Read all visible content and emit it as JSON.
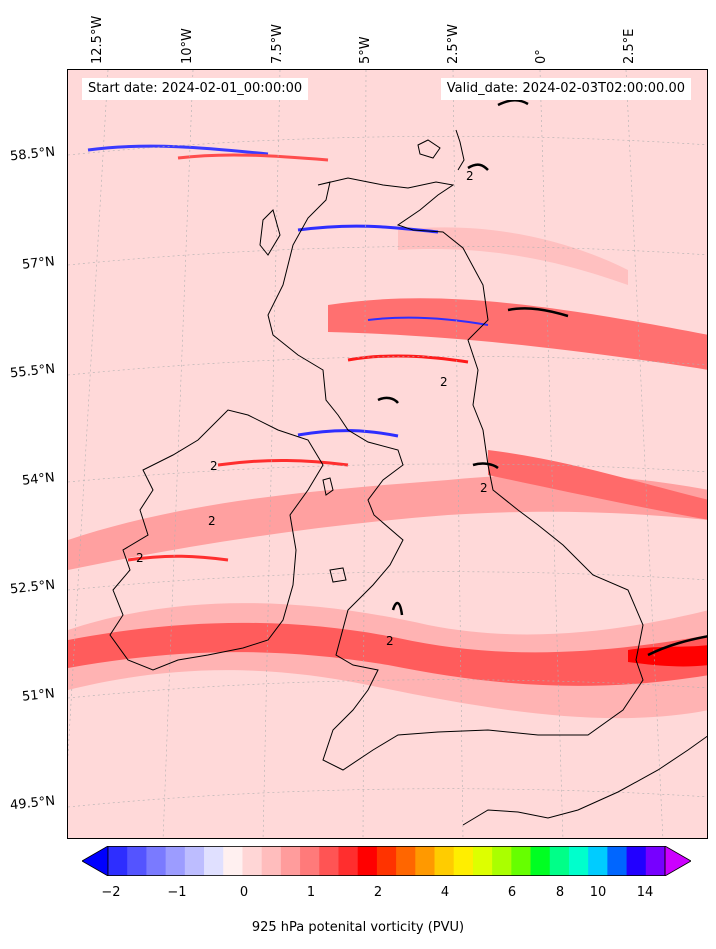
{
  "map": {
    "start_date": "Start date: 2024-02-01_00:00:00",
    "valid_date": "Valid_date: 2024-02-03T02:00:00.00",
    "lon_labels": [
      "12.5°W",
      "10°W",
      "7.5°W",
      "5°W",
      "2.5°W",
      "0°",
      "2.5°E"
    ],
    "lat_labels": [
      "58.5°N",
      "57°N",
      "55.5°N",
      "54°N",
      "52.5°N",
      "51°N",
      "49.5°N"
    ],
    "contour_labels": [
      "2",
      "2",
      "2",
      "2",
      "2",
      "2",
      "2"
    ],
    "contour_value": 2,
    "background_color": "#ffd9d9",
    "coastline_color": "#000000"
  },
  "colorbar": {
    "label": "925 hPa potenital vorticity (PVU)",
    "tick_labels": [
      "−2",
      "−1",
      "0",
      "1",
      "2",
      "4",
      "6",
      "8",
      "10",
      "14"
    ],
    "colors": [
      "#0000ff",
      "#2e2eff",
      "#5454ff",
      "#7a7aff",
      "#9c9cff",
      "#bdbdff",
      "#e0e0ff",
      "#fff0f0",
      "#ffd6d6",
      "#ffbdbd",
      "#ff9c9c",
      "#ff7a7a",
      "#ff5454",
      "#ff2e2e",
      "#ff0000",
      "#ff3300",
      "#ff6600",
      "#ff9900",
      "#ffcc00",
      "#ffee00",
      "#ddff00",
      "#aaff00",
      "#66ff00",
      "#00ff22",
      "#00ff88",
      "#00ffcc",
      "#00ccff",
      "#0066ff",
      "#2200ff",
      "#7700ff",
      "#cc00ff"
    ],
    "extend": "both"
  }
}
